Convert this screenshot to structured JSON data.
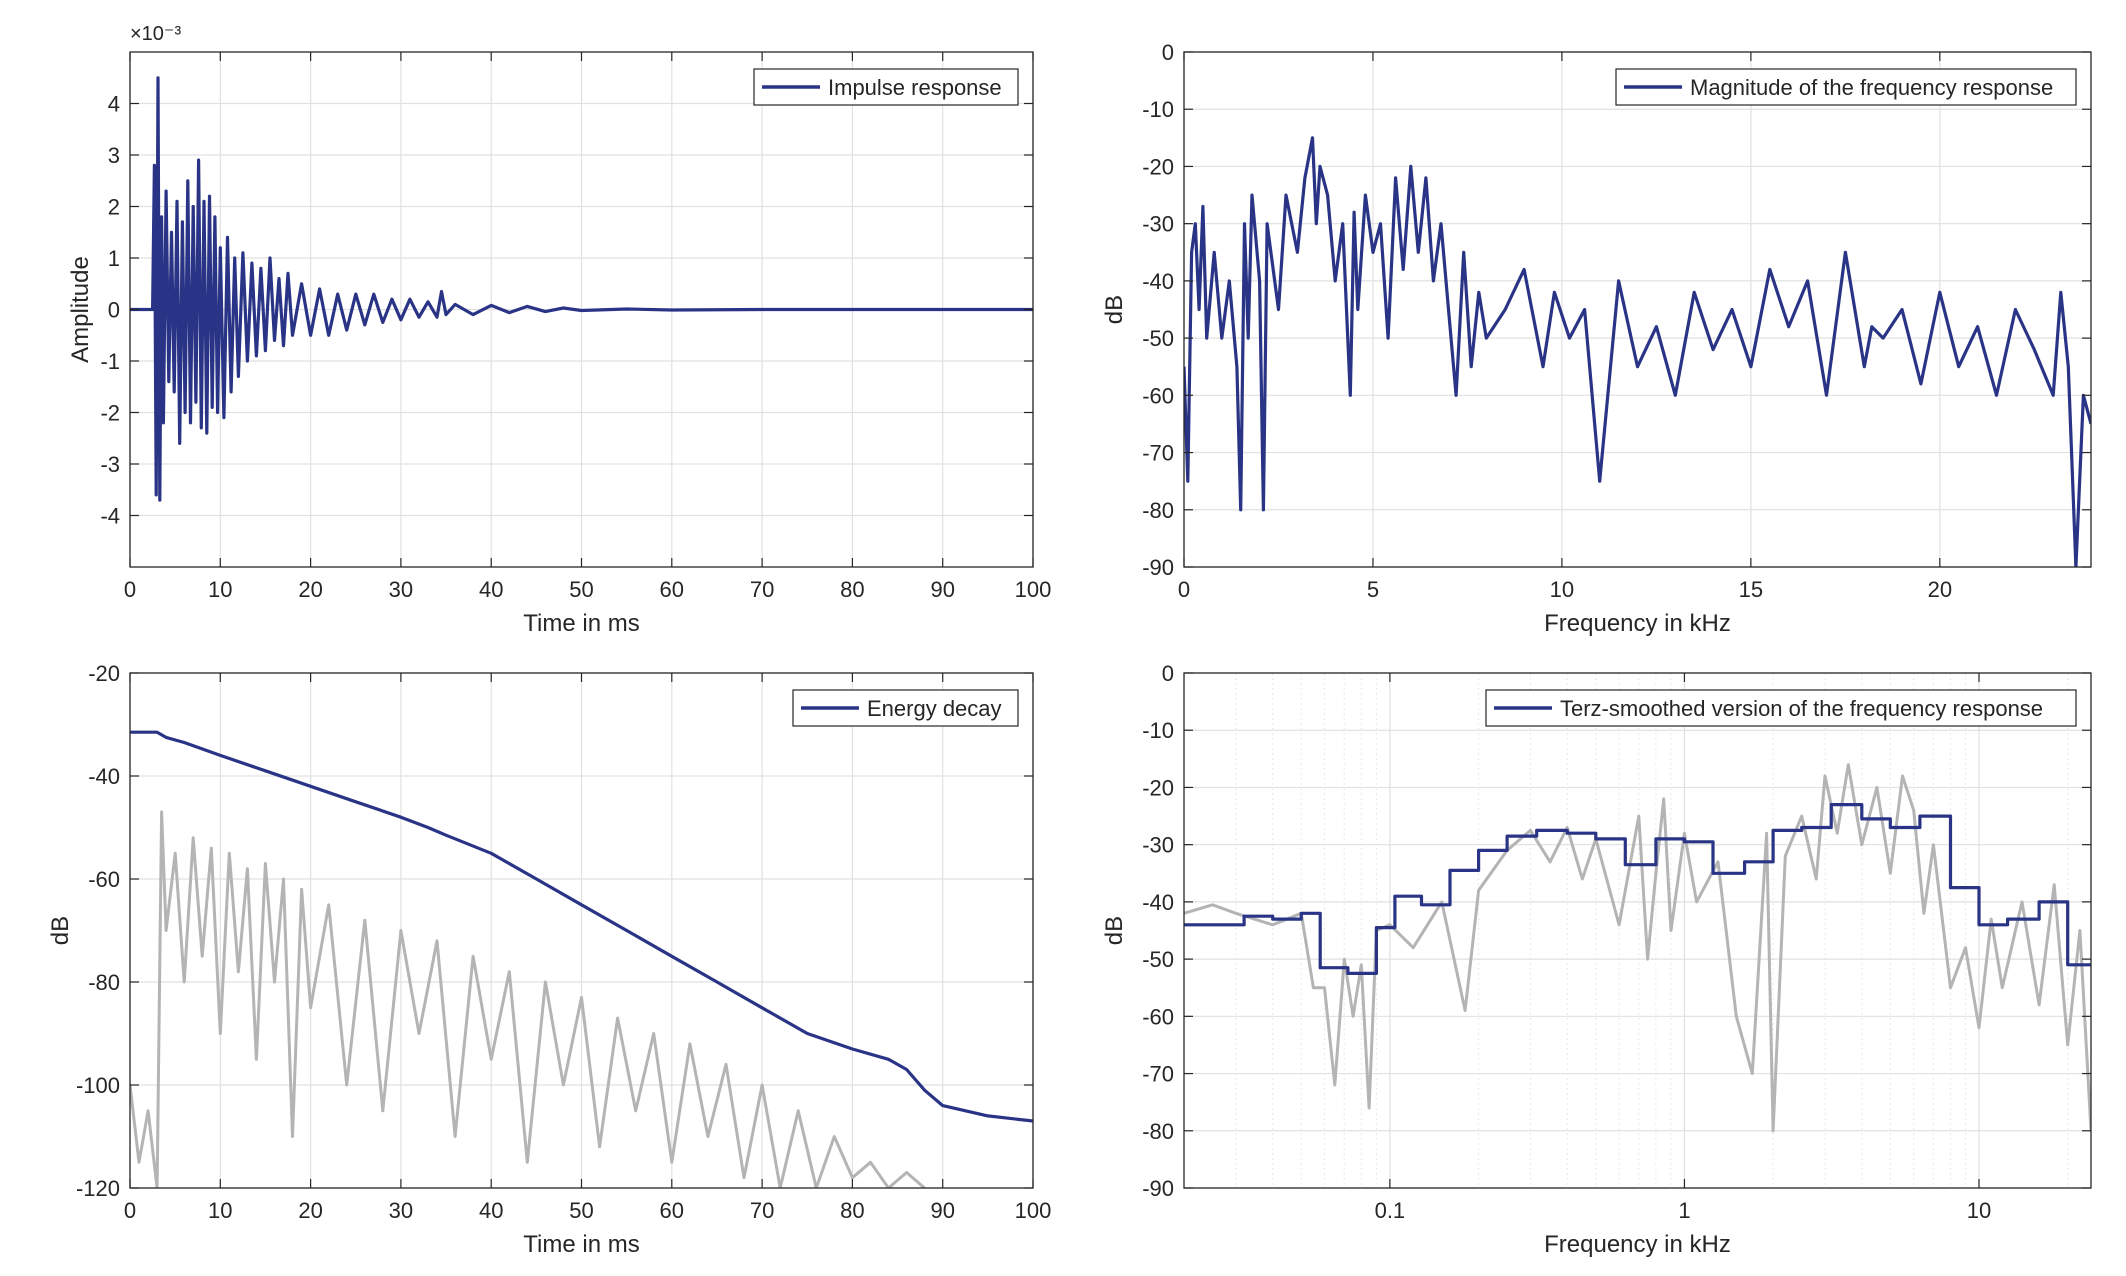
{
  "colors": {
    "series": "#2a3486",
    "background_series": "#b4b4b4",
    "grid": "#e1e1e1",
    "axis": "#262626",
    "legend_border": "#262626"
  },
  "chart_data": [
    {
      "id": "impulse",
      "type": "line",
      "xlabel": "Time in ms",
      "ylabel": "Amplitude",
      "exponent_label": "×10⁻³",
      "xlim": [
        0,
        100
      ],
      "ylim": [
        -5,
        5
      ],
      "xticks": [
        0,
        10,
        20,
        30,
        40,
        50,
        60,
        70,
        80,
        90,
        100
      ],
      "yticks": [
        -4,
        -3,
        -2,
        -1,
        0,
        1,
        2,
        3,
        4
      ],
      "grid": true,
      "legend_position": "top-right",
      "series": [
        {
          "name": "Impulse response",
          "x": [
            0,
            2.5,
            2.7,
            2.9,
            3.1,
            3.3,
            3.5,
            3.7,
            4.0,
            4.3,
            4.6,
            4.9,
            5.2,
            5.5,
            5.8,
            6.1,
            6.4,
            6.7,
            7.0,
            7.3,
            7.6,
            7.9,
            8.2,
            8.5,
            8.8,
            9.1,
            9.4,
            9.7,
            10.0,
            10.4,
            10.8,
            11.2,
            11.6,
            12.0,
            12.5,
            13.0,
            13.5,
            14.0,
            14.5,
            15.0,
            15.5,
            16.0,
            16.5,
            17.0,
            17.5,
            18.0,
            19.0,
            20.0,
            21.0,
            22.0,
            23.0,
            24.0,
            25.0,
            26.0,
            27.0,
            28.0,
            29.0,
            30.0,
            31.0,
            32.0,
            33.0,
            34.0,
            34.5,
            35.0,
            36.0,
            38.0,
            40.0,
            42.0,
            44.0,
            46.0,
            48.0,
            50.0,
            55.0,
            60.0,
            70.0,
            80.0,
            90.0,
            100.0
          ],
          "y": [
            0,
            0.0,
            2.8,
            -3.6,
            4.5,
            -3.7,
            1.8,
            -2.2,
            2.3,
            -1.4,
            1.5,
            -1.6,
            2.1,
            -2.6,
            1.7,
            -2.0,
            2.5,
            -2.2,
            2.0,
            -1.8,
            2.9,
            -2.3,
            2.1,
            -2.4,
            2.2,
            -1.9,
            1.8,
            -2.0,
            1.2,
            -2.1,
            1.4,
            -1.6,
            1.0,
            -1.3,
            1.1,
            -1.0,
            0.9,
            -0.9,
            0.8,
            -0.8,
            1.0,
            -0.6,
            0.6,
            -0.7,
            0.7,
            -0.5,
            0.5,
            -0.5,
            0.4,
            -0.5,
            0.3,
            -0.4,
            0.3,
            -0.3,
            0.3,
            -0.25,
            0.2,
            -0.2,
            0.2,
            -0.15,
            0.15,
            -0.15,
            0.35,
            -0.1,
            0.1,
            -0.1,
            0.08,
            -0.06,
            0.06,
            -0.04,
            0.03,
            -0.02,
            0.01,
            -0.01,
            0.0,
            0.0,
            0.0,
            0.0
          ]
        }
      ]
    },
    {
      "id": "magnitude",
      "type": "line",
      "xlabel": "Frequency in kHz",
      "ylabel": "dB",
      "xlim": [
        0,
        24
      ],
      "ylim": [
        -90,
        0
      ],
      "xticks": [
        0,
        5,
        10,
        15,
        20
      ],
      "yticks": [
        0,
        -10,
        -20,
        -30,
        -40,
        -50,
        -60,
        -70,
        -80,
        -90
      ],
      "grid": true,
      "legend_position": "top-right",
      "series": [
        {
          "name": "Magnitude of the frequency response",
          "x": [
            0,
            0.1,
            0.2,
            0.3,
            0.4,
            0.5,
            0.6,
            0.8,
            1.0,
            1.2,
            1.4,
            1.5,
            1.6,
            1.7,
            1.8,
            2.0,
            2.1,
            2.2,
            2.3,
            2.5,
            2.7,
            3.0,
            3.2,
            3.4,
            3.5,
            3.6,
            3.8,
            4.0,
            4.2,
            4.4,
            4.5,
            4.6,
            4.8,
            5.0,
            5.2,
            5.4,
            5.6,
            5.8,
            6.0,
            6.2,
            6.4,
            6.6,
            6.8,
            7.0,
            7.2,
            7.4,
            7.6,
            7.8,
            8.0,
            8.5,
            9.0,
            9.5,
            9.8,
            10.2,
            10.6,
            11.0,
            11.5,
            12.0,
            12.5,
            13.0,
            13.5,
            14.0,
            14.5,
            15.0,
            15.5,
            16.0,
            16.5,
            17.0,
            17.5,
            18.0,
            18.2,
            18.5,
            19.0,
            19.5,
            20.0,
            20.5,
            21.0,
            21.5,
            22.0,
            22.5,
            23.0,
            23.2,
            23.4,
            23.6,
            23.8,
            24.0
          ],
          "y": [
            -55,
            -75,
            -35,
            -30,
            -45,
            -27,
            -50,
            -35,
            -50,
            -40,
            -55,
            -80,
            -30,
            -50,
            -25,
            -40,
            -80,
            -30,
            -35,
            -45,
            -25,
            -35,
            -22,
            -15,
            -30,
            -20,
            -25,
            -40,
            -30,
            -60,
            -28,
            -45,
            -25,
            -35,
            -30,
            -50,
            -22,
            -38,
            -20,
            -35,
            -22,
            -40,
            -30,
            -45,
            -60,
            -35,
            -55,
            -42,
            -50,
            -45,
            -38,
            -55,
            -42,
            -50,
            -45,
            -75,
            -40,
            -55,
            -48,
            -60,
            -42,
            -52,
            -45,
            -55,
            -38,
            -48,
            -40,
            -60,
            -35,
            -55,
            -48,
            -50,
            -45,
            -58,
            -42,
            -55,
            -48,
            -60,
            -45,
            -52,
            -60,
            -42,
            -55,
            -90,
            -60,
            -65
          ]
        }
      ]
    },
    {
      "id": "energy-decay",
      "type": "line",
      "xlabel": "Time in ms",
      "ylabel": "dB",
      "xlim": [
        0,
        100
      ],
      "ylim": [
        -120,
        -20
      ],
      "xticks": [
        0,
        10,
        20,
        30,
        40,
        50,
        60,
        70,
        80,
        90,
        100
      ],
      "yticks": [
        -20,
        -40,
        -60,
        -80,
        -100,
        -120
      ],
      "grid": true,
      "legend_position": "top-right",
      "series": [
        {
          "name": "Energy decay",
          "x": [
            0,
            3,
            4,
            6,
            10,
            15,
            20,
            25,
            30,
            33,
            35,
            40,
            45,
            50,
            55,
            60,
            65,
            70,
            75,
            80,
            84,
            86,
            88,
            90,
            95,
            100
          ],
          "y": [
            -31.5,
            -31.5,
            -32.5,
            -33.5,
            -36,
            -39,
            -42,
            -45,
            -48,
            -50,
            -51.5,
            -55,
            -60,
            -65,
            -70,
            -75,
            -80,
            -85,
            -90,
            -93,
            -95,
            -97,
            -101,
            -104,
            -106,
            -107
          ]
        },
        {
          "x": [
            0,
            1,
            2,
            3,
            3.5,
            4,
            5,
            6,
            7,
            8,
            9,
            10,
            11,
            12,
            13,
            14,
            15,
            16,
            17,
            18,
            19,
            20,
            22,
            24,
            26,
            28,
            30,
            32,
            34,
            36,
            38,
            40,
            42,
            44,
            46,
            48,
            50,
            52,
            54,
            56,
            58,
            60,
            62,
            64,
            66,
            68,
            70,
            72,
            74,
            76,
            78,
            80,
            82,
            84,
            86,
            88
          ],
          "y": [
            -100,
            -115,
            -105,
            -120,
            -47,
            -70,
            -55,
            -80,
            -52,
            -75,
            -54,
            -90,
            -55,
            -78,
            -58,
            -95,
            -57,
            -80,
            -60,
            -110,
            -62,
            -85,
            -65,
            -100,
            -68,
            -105,
            -70,
            -90,
            -72,
            -110,
            -75,
            -95,
            -78,
            -115,
            -80,
            -100,
            -83,
            -112,
            -87,
            -105,
            -90,
            -115,
            -92,
            -110,
            -96,
            -118,
            -100,
            -120,
            -105,
            -120,
            -110,
            -118,
            -115,
            -120,
            -117,
            -120
          ]
        }
      ]
    },
    {
      "id": "terz-smoothed",
      "type": "line",
      "xscale": "log",
      "xlabel": "Frequency in kHz",
      "ylabel": "dB",
      "xlim": [
        0.02,
        24
      ],
      "ylim": [
        -90,
        0
      ],
      "xticks": [
        0.1,
        1,
        10
      ],
      "xtick_labels": [
        "0.1",
        "1",
        "10"
      ],
      "yticks": [
        0,
        -10,
        -20,
        -30,
        -40,
        -50,
        -60,
        -70,
        -80,
        -90
      ],
      "grid": true,
      "legend_position": "top-right",
      "series": [
        {
          "name": "Terz-smoothed version of the frequency response",
          "step": true,
          "x": [
            0.02,
            0.032,
            0.04,
            0.05,
            0.058,
            0.072,
            0.09,
            0.104,
            0.128,
            0.16,
            0.2,
            0.25,
            0.315,
            0.4,
            0.5,
            0.63,
            0.8,
            1.0,
            1.25,
            1.6,
            2.0,
            2.5,
            3.15,
            4.0,
            5.0,
            6.3,
            8.0,
            10.0,
            12.5,
            16.0,
            20.0,
            24.0
          ],
          "y": [
            -44,
            -42.5,
            -43,
            -42,
            -51.5,
            -52.5,
            -44.5,
            -39,
            -40.5,
            -34.5,
            -31,
            -28.5,
            -27.5,
            -28,
            -29,
            -33.5,
            -29,
            -29.5,
            -35,
            -33,
            -27.5,
            -27,
            -23,
            -25.5,
            -27,
            -25,
            -37.5,
            -44,
            -43,
            -40,
            -51,
            -51
          ]
        },
        {
          "x": [
            0.02,
            0.025,
            0.03,
            0.04,
            0.05,
            0.055,
            0.06,
            0.065,
            0.07,
            0.075,
            0.08,
            0.085,
            0.09,
            0.1,
            0.12,
            0.15,
            0.18,
            0.2,
            0.25,
            0.3,
            0.35,
            0.4,
            0.45,
            0.5,
            0.6,
            0.7,
            0.75,
            0.8,
            0.85,
            0.9,
            1.0,
            1.1,
            1.3,
            1.5,
            1.7,
            1.9,
            2.0,
            2.2,
            2.5,
            2.8,
            3.0,
            3.3,
            3.6,
            4.0,
            4.5,
            5.0,
            5.5,
            6.0,
            6.5,
            7.0,
            8.0,
            9.0,
            10.0,
            11.0,
            12.0,
            14.0,
            16.0,
            18.0,
            20.0,
            22.0,
            24.0
          ],
          "y": [
            -42,
            -40.5,
            -42,
            -44,
            -42,
            -55,
            -55,
            -72,
            -50,
            -60,
            -51,
            -76,
            -45,
            -44,
            -48,
            -40,
            -59,
            -38,
            -31,
            -27.5,
            -33,
            -27,
            -36,
            -29,
            -44,
            -25,
            -50,
            -35,
            -22,
            -45,
            -28,
            -40,
            -33,
            -60,
            -70,
            -28,
            -80,
            -32,
            -25,
            -36,
            -18,
            -28,
            -16,
            -30,
            -20,
            -35,
            -18,
            -24,
            -42,
            -30,
            -55,
            -48,
            -62,
            -43,
            -55,
            -40,
            -58,
            -37,
            -65,
            -45,
            -80
          ]
        }
      ]
    }
  ]
}
